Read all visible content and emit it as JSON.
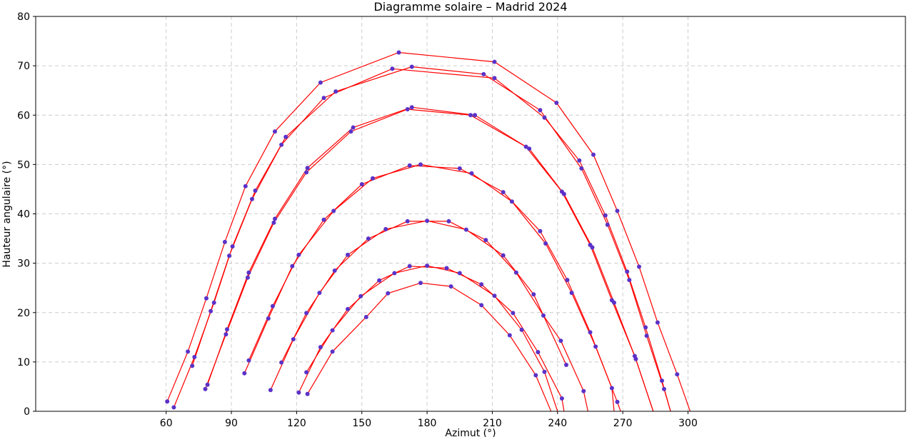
{
  "chart_data": {
    "type": "line",
    "title": "Diagramme solaire – Madrid 2024",
    "xlabel": "Azimut (°)",
    "ylabel": "Hauteur angulaire (°)",
    "xlim": [
      0,
      400
    ],
    "ylim": [
      0,
      80
    ],
    "xticks": [
      60,
      90,
      120,
      150,
      180,
      210,
      240,
      270,
      300
    ],
    "yticks": [
      0,
      10,
      20,
      30,
      40,
      50,
      60,
      70,
      80
    ],
    "grid": true,
    "line_color": "#ff0000",
    "marker_color": "#5a32c8",
    "series": [
      {
        "points": [
          [
            60.5,
            2.0
          ],
          [
            70,
            12.1
          ],
          [
            78.5,
            22.9
          ],
          [
            87,
            34.3
          ],
          [
            96.5,
            45.6
          ],
          [
            110,
            56.7
          ],
          [
            131,
            66.6
          ],
          [
            167,
            72.7
          ],
          [
            211,
            70.8
          ],
          [
            239.5,
            62.5
          ],
          [
            256.5,
            52.0
          ],
          [
            267.5,
            40.6
          ],
          [
            277.5,
            29.3
          ],
          [
            286,
            18.0
          ],
          [
            295,
            7.5
          ],
          [
            301,
            0
          ]
        ]
      },
      {
        "points": [
          [
            63.5,
            0.8
          ],
          [
            73,
            11.0
          ],
          [
            82,
            22.0
          ],
          [
            90.5,
            33.4
          ],
          [
            101,
            44.7
          ],
          [
            115,
            55.6
          ],
          [
            138,
            64.8
          ],
          [
            173,
            69.8
          ],
          [
            206,
            68.3
          ],
          [
            232,
            61.0
          ],
          [
            251,
            49.2
          ],
          [
            263,
            37.8
          ],
          [
            273,
            26.6
          ],
          [
            281,
            15.3
          ],
          [
            289,
            4.5
          ],
          [
            292,
            0
          ]
        ]
      },
      {
        "points": [
          [
            72,
            9.2
          ],
          [
            80.5,
            20.3
          ],
          [
            89,
            31.5
          ],
          [
            99.5,
            43.0
          ],
          [
            113,
            54.0
          ],
          [
            132.5,
            63.5
          ],
          [
            164,
            69.4
          ],
          [
            211,
            67.5
          ],
          [
            234,
            59.5
          ],
          [
            250,
            50.8
          ],
          [
            262,
            39.7
          ],
          [
            272,
            28.3
          ],
          [
            280.5,
            17.0
          ],
          [
            288,
            6.2
          ],
          [
            292,
            0
          ]
        ]
      },
      {
        "points": [
          [
            79,
            5.4
          ],
          [
            88,
            16.6
          ],
          [
            98,
            28.1
          ],
          [
            110,
            39.0
          ],
          [
            125,
            49.3
          ],
          [
            146,
            57.5
          ],
          [
            173,
            61.6
          ],
          [
            202,
            60.0
          ],
          [
            227,
            53.2
          ],
          [
            243,
            44.0
          ],
          [
            256,
            33.2
          ],
          [
            266,
            22.0
          ],
          [
            276,
            10.6
          ],
          [
            284,
            0
          ]
        ]
      },
      {
        "points": [
          [
            78,
            4.5
          ],
          [
            87.5,
            15.6
          ],
          [
            97.5,
            27.1
          ],
          [
            109.5,
            38.2
          ],
          [
            124.5,
            48.4
          ],
          [
            145,
            56.7
          ],
          [
            171,
            61.2
          ],
          [
            200,
            60.0
          ],
          [
            225.5,
            53.6
          ],
          [
            242,
            44.5
          ],
          [
            255,
            33.7
          ],
          [
            265,
            22.5
          ],
          [
            275.5,
            11.2
          ],
          [
            284,
            0
          ]
        ]
      },
      {
        "points": [
          [
            98,
            10.3
          ],
          [
            109,
            21.3
          ],
          [
            121,
            31.7
          ],
          [
            137,
            40.6
          ],
          [
            155,
            47.2
          ],
          [
            177,
            50.0
          ],
          [
            200.5,
            48.2
          ],
          [
            219,
            42.5
          ],
          [
            234.5,
            34.0
          ],
          [
            246.5,
            24.0
          ],
          [
            257.5,
            13.1
          ],
          [
            267.5,
            1.9
          ],
          [
            269,
            0
          ]
        ]
      },
      {
        "points": [
          [
            96,
            7.7
          ],
          [
            107,
            18.8
          ],
          [
            118,
            29.4
          ],
          [
            132.5,
            38.8
          ],
          [
            150,
            46.0
          ],
          [
            172,
            49.8
          ],
          [
            195,
            49.2
          ],
          [
            215,
            44.4
          ],
          [
            232,
            36.5
          ],
          [
            244.5,
            26.6
          ],
          [
            255,
            16.0
          ],
          [
            265,
            4.7
          ],
          [
            266,
            0
          ]
        ]
      },
      {
        "points": [
          [
            113,
            9.9
          ],
          [
            124.5,
            19.9
          ],
          [
            137.5,
            28.5
          ],
          [
            153,
            35.0
          ],
          [
            171,
            38.5
          ],
          [
            190,
            38.5
          ],
          [
            207,
            34.7
          ],
          [
            221,
            28.1
          ],
          [
            233.5,
            19.4
          ],
          [
            241.5,
            14.3
          ],
          [
            252,
            4.1
          ],
          [
            254,
            0
          ]
        ]
      },
      {
        "points": [
          [
            108,
            4.3
          ],
          [
            118.5,
            14.6
          ],
          [
            130.5,
            24.0
          ],
          [
            143.5,
            31.7
          ],
          [
            161,
            36.9
          ],
          [
            180,
            38.6
          ],
          [
            198,
            36.8
          ],
          [
            215,
            31.6
          ],
          [
            229,
            23.7
          ],
          [
            244,
            9.4
          ]
        ]
      },
      {
        "points": [
          [
            124.5,
            7.9
          ],
          [
            136.5,
            16.4
          ],
          [
            149.5,
            23.3
          ],
          [
            165,
            28.0
          ],
          [
            180,
            29.5
          ],
          [
            195,
            28.0
          ],
          [
            211,
            23.4
          ],
          [
            223.5,
            16.5
          ],
          [
            234,
            8.0
          ],
          [
            240,
            0
          ]
        ]
      },
      {
        "points": [
          [
            121,
            3.8
          ],
          [
            131,
            13.0
          ],
          [
            143.5,
            20.7
          ],
          [
            158,
            26.5
          ],
          [
            172,
            29.4
          ],
          [
            189,
            29.0
          ],
          [
            205,
            25.7
          ],
          [
            219.5,
            19.9
          ],
          [
            231,
            12.0
          ],
          [
            242,
            2.6
          ],
          [
            243,
            0
          ]
        ]
      },
      {
        "points": [
          [
            125,
            3.5
          ],
          [
            136.5,
            12.1
          ],
          [
            152,
            19.1
          ],
          [
            162,
            23.9
          ],
          [
            177,
            26.0
          ],
          [
            191,
            25.3
          ],
          [
            205,
            21.5
          ],
          [
            218,
            15.4
          ],
          [
            230,
            7.3
          ],
          [
            237,
            0
          ]
        ]
      }
    ]
  }
}
